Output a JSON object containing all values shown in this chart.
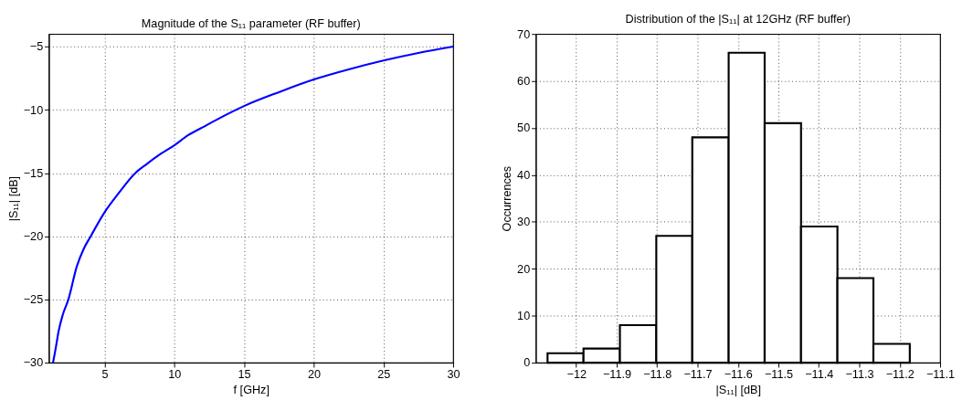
{
  "chart_data": [
    {
      "type": "line",
      "title": "Magnitude of the S₁₁ parameter (RF buffer)",
      "xlabel": "f [GHz]",
      "ylabel": "|S₁₁| [dB]",
      "x": [
        1.3,
        1.5,
        1.7,
        2.0,
        2.4,
        3.0,
        3.5,
        4.0,
        5.0,
        6.0,
        7.2,
        8.0,
        9.0,
        10.0,
        11.0,
        12.0,
        13.0,
        15.0,
        17.5,
        20.0,
        22.5,
        25.0,
        27.5,
        30.0
      ],
      "series": [
        {
          "color": "#0000ff",
          "values": [
            -30.0,
            -28.8,
            -27.5,
            -26.2,
            -25.0,
            -22.4,
            -21.0,
            -20.0,
            -18.1,
            -16.6,
            -15.0,
            -14.3,
            -13.5,
            -12.8,
            -12.0,
            -11.4,
            -10.8,
            -9.7,
            -8.6,
            -7.6,
            -6.8,
            -6.1,
            -5.5,
            -5.0
          ]
        }
      ],
      "xlim": [
        1,
        30
      ],
      "xticks": [
        5,
        10,
        15,
        20,
        25,
        30
      ],
      "ylim": [
        -30,
        -4
      ],
      "yticks": [
        -30,
        -25,
        -20,
        -15,
        -10,
        -5
      ],
      "grid": true,
      "marker": "none",
      "line_style": "solid"
    },
    {
      "type": "histogram",
      "title": "Distribution of the |S₁₁| at 12GHz (RF buffer)",
      "xlabel": "|S₁₁| [dB]",
      "ylabel": "Occurrences",
      "bins": [
        -12.071,
        -11.982,
        -11.892,
        -11.802,
        -11.713,
        -11.623,
        -11.534,
        -11.444,
        -11.354,
        -11.265,
        -11.175
      ],
      "values": [
        2,
        3,
        8,
        27,
        48,
        66,
        51,
        29,
        18,
        4
      ],
      "xlim": [
        -12.1,
        -11.1
      ],
      "xticks": [
        -12,
        -11.9,
        -11.8,
        -11.7,
        -11.6,
        -11.5,
        -11.4,
        -11.3,
        -11.2,
        -11.1
      ],
      "ylim": [
        0,
        70
      ],
      "yticks": [
        0,
        10,
        20,
        30,
        40,
        50,
        60,
        70
      ],
      "grid": true
    }
  ]
}
